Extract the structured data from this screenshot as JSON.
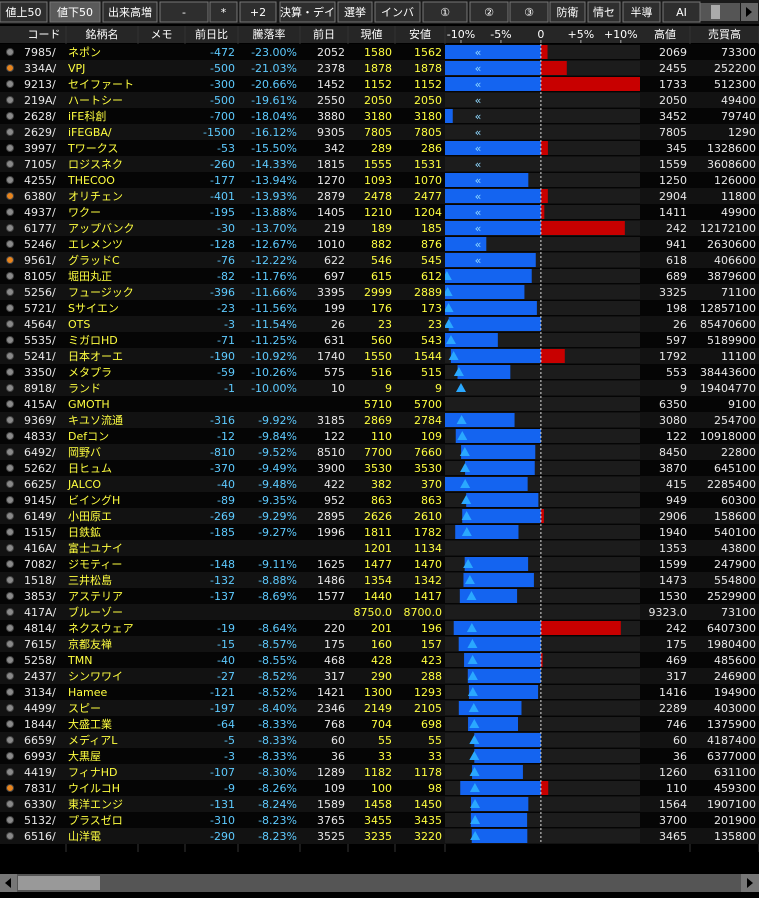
{
  "toolbar": [
    "値上50",
    "値下50",
    "出来高増",
    "-",
    "*",
    "+2",
    "決算・デイ",
    "選挙",
    "インバ",
    "①",
    "②",
    "③",
    "防衛",
    "情セ",
    "半導",
    "AI"
  ],
  "active_tab": 1,
  "table": {
    "headers": [
      "コード",
      "銘柄名",
      "メモ",
      "前日比",
      "騰落率",
      "前日",
      "現値",
      "安値",
      "高値",
      "売買高"
    ],
    "rows": [
      [
        "7985/",
        "ネポン",
        "-472",
        "-23.00%",
        "2052",
        "1580",
        "1562",
        "2069",
        "73300"
      ],
      [
        "334A/",
        "VPJ",
        "-500",
        "-21.03%",
        "2378",
        "1878",
        "1878",
        "2455",
        "252200"
      ],
      [
        "9213/",
        "セイファート",
        "-300",
        "-20.66%",
        "1452",
        "1152",
        "1152",
        "1733",
        "512300"
      ],
      [
        "219A/",
        "ハートシー",
        "-500",
        "-19.61%",
        "2550",
        "2050",
        "2050",
        "2050",
        "49400"
      ],
      [
        "2628/",
        "iFE科創",
        "-700",
        "-18.04%",
        "3880",
        "3180",
        "3180",
        "3452",
        "79740"
      ],
      [
        "2629/",
        "iFEGBA/",
        "-1500",
        "-16.12%",
        "9305",
        "7805",
        "7805",
        "7805",
        "1290"
      ],
      [
        "3997/",
        "Tワークス",
        "-53",
        "-15.50%",
        "342",
        "289",
        "286",
        "345",
        "1328600"
      ],
      [
        "7105/",
        "ロジスネク",
        "-260",
        "-14.33%",
        "1815",
        "1555",
        "1531",
        "1559",
        "3608600"
      ],
      [
        "4255/",
        "THECOO",
        "-177",
        "-13.94%",
        "1270",
        "1093",
        "1070",
        "1250",
        "126000"
      ],
      [
        "6380/",
        "オリチェン",
        "-401",
        "-13.93%",
        "2879",
        "2478",
        "2477",
        "2904",
        "11800"
      ],
      [
        "4937/",
        "ワクー",
        "-195",
        "-13.88%",
        "1405",
        "1210",
        "1204",
        "1411",
        "49900"
      ],
      [
        "6177/",
        "アップバンク",
        "-30",
        "-13.70%",
        "219",
        "189",
        "185",
        "242",
        "12172100"
      ],
      [
        "5246/",
        "エレメンツ",
        "-128",
        "-12.67%",
        "1010",
        "882",
        "876",
        "941",
        "2630600"
      ],
      [
        "9561/",
        "グラッドC",
        "-76",
        "-12.22%",
        "622",
        "546",
        "545",
        "618",
        "406600"
      ],
      [
        "8105/",
        "堀田丸正",
        "-82",
        "-11.76%",
        "697",
        "615",
        "612",
        "689",
        "3879600"
      ],
      [
        "5256/",
        "フュージック",
        "-396",
        "-11.66%",
        "3395",
        "2999",
        "2889",
        "3325",
        "71100"
      ],
      [
        "5721/",
        "Sサイエン",
        "-23",
        "-11.56%",
        "199",
        "176",
        "173",
        "198",
        "12857100"
      ],
      [
        "4564/",
        "OTS",
        "-3",
        "-11.54%",
        "26",
        "23",
        "23",
        "26",
        "85470600"
      ],
      [
        "5535/",
        "ミガロHD",
        "-71",
        "-11.25%",
        "631",
        "560",
        "543",
        "597",
        "5189900"
      ],
      [
        "5241/",
        "日本オーエ",
        "-190",
        "-10.92%",
        "1740",
        "1550",
        "1544",
        "1792",
        "11100"
      ],
      [
        "3350/",
        "メタプラ",
        "-59",
        "-10.26%",
        "575",
        "516",
        "515",
        "553",
        "38443600"
      ],
      [
        "8918/",
        "ランド",
        "-1",
        "-10.00%",
        "10",
        "9",
        "9",
        "9",
        "19404770"
      ],
      [
        "415A/",
        "GMOTH",
        null,
        null,
        null,
        "5710",
        "5700",
        "6350",
        "9100"
      ],
      [
        "9369/",
        "キユソ流通",
        "-316",
        "-9.92%",
        "3185",
        "2869",
        "2784",
        "3080",
        "254700"
      ],
      [
        "4833/",
        "Defコン",
        "-12",
        "-9.84%",
        "122",
        "110",
        "109",
        "122",
        "10918000"
      ],
      [
        "6492/",
        "岡野バ",
        "-810",
        "-9.52%",
        "8510",
        "7700",
        "7660",
        "8450",
        "22800"
      ],
      [
        "5262/",
        "日ヒュム",
        "-370",
        "-9.49%",
        "3900",
        "3530",
        "3530",
        "3870",
        "645100"
      ],
      [
        "6625/",
        "JALCO",
        "-40",
        "-9.48%",
        "422",
        "382",
        "370",
        "415",
        "2285400"
      ],
      [
        "9145/",
        "ビイングH",
        "-89",
        "-9.35%",
        "952",
        "863",
        "863",
        "949",
        "60300"
      ],
      [
        "6149/",
        "小田原エ",
        "-269",
        "-9.29%",
        "2895",
        "2626",
        "2610",
        "2906",
        "158600"
      ],
      [
        "1515/",
        "日鉄鉱",
        "-185",
        "-9.27%",
        "1996",
        "1811",
        "1782",
        "1940",
        "540100"
      ],
      [
        "416A/",
        "富士ユナイ",
        null,
        null,
        null,
        "1201",
        "1134",
        "1353",
        "43800"
      ],
      [
        "7082/",
        "ジモティー",
        "-148",
        "-9.11%",
        "1625",
        "1477",
        "1470",
        "1599",
        "247900"
      ],
      [
        "1518/",
        "三井松島",
        "-132",
        "-8.88%",
        "1486",
        "1354",
        "1342",
        "1473",
        "554800"
      ],
      [
        "3853/",
        "アステリア",
        "-137",
        "-8.69%",
        "1577",
        "1440",
        "1417",
        "1530",
        "2529900"
      ],
      [
        "417A/",
        "ブルーゾー",
        null,
        null,
        null,
        "8750.0",
        "8700.0",
        "9323.0",
        "73100"
      ],
      [
        "4814/",
        "ネクスウェア",
        "-19",
        "-8.64%",
        "220",
        "201",
        "196",
        "242",
        "6407300"
      ],
      [
        "7615/",
        "京都友禅",
        "-15",
        "-8.57%",
        "175",
        "160",
        "157",
        "175",
        "1980400"
      ],
      [
        "5258/",
        "TMN",
        "-40",
        "-8.55%",
        "468",
        "428",
        "423",
        "469",
        "485600"
      ],
      [
        "2437/",
        "シンワワイ",
        "-27",
        "-8.52%",
        "317",
        "290",
        "288",
        "317",
        "246900"
      ],
      [
        "3134/",
        "Hamee",
        "-121",
        "-8.52%",
        "1421",
        "1300",
        "1293",
        "1416",
        "194900"
      ],
      [
        "4499/",
        "スピー",
        "-197",
        "-8.40%",
        "2346",
        "2149",
        "2105",
        "2289",
        "403000"
      ],
      [
        "1844/",
        "大盛工業",
        "-64",
        "-8.33%",
        "768",
        "704",
        "698",
        "746",
        "1375900"
      ],
      [
        "6659/",
        "メディアL",
        "-5",
        "-8.33%",
        "60",
        "55",
        "55",
        "60",
        "4187400"
      ],
      [
        "6993/",
        "大黒屋",
        "-3",
        "-8.33%",
        "36",
        "33",
        "33",
        "36",
        "6377000"
      ],
      [
        "4419/",
        "フィナHD",
        "-107",
        "-8.30%",
        "1289",
        "1182",
        "1178",
        "1260",
        "631100"
      ],
      [
        "7831/",
        "ウイルコH",
        "-9",
        "-8.26%",
        "109",
        "100",
        "98",
        "110",
        "459300"
      ],
      [
        "6330/",
        "東洋エンジ",
        "-131",
        "-8.24%",
        "1589",
        "1458",
        "1450",
        "1564",
        "1907100"
      ],
      [
        "5132/",
        "プラスゼロ",
        "-310",
        "-8.23%",
        "3765",
        "3455",
        "3435",
        "3700",
        "201900"
      ],
      [
        "6516/",
        "山洋電",
        "-290",
        "-8.23%",
        "3525",
        "3235",
        "3220",
        "3465",
        "135800"
      ]
    ]
  },
  "dot_colors": [
    "#8a8a8a",
    "#e8851e",
    "#8a8a8a",
    "#8a8a8a",
    "#8a8a8a",
    "#8a8a8a",
    "#8a8a8a",
    "#8a8a8a",
    "#8a8a8a",
    "#e8851e",
    "#8a8a8a",
    "#8a8a8a",
    "#8a8a8a",
    "#e8851e",
    "#8a8a8a",
    "#8a8a8a",
    "#8a8a8a",
    "#8a8a8a",
    "#8a8a8a",
    "#8a8a8a",
    "#8a8a8a",
    "#8a8a8a",
    "#8a8a8a",
    "#8a8a8a",
    "#8a8a8a",
    "#8a8a8a",
    "#8a8a8a",
    "#8a8a8a",
    "#8a8a8a",
    "#8a8a8a",
    "#8a8a8a",
    "#8a8a8a",
    "#8a8a8a",
    "#8a8a8a",
    "#8a8a8a",
    "#8a8a8a",
    "#8a8a8a",
    "#8a8a8a",
    "#8a8a8a",
    "#8a8a8a",
    "#8a8a8a",
    "#8a8a8a",
    "#8a8a8a",
    "#8a8a8a",
    "#8a8a8a",
    "#8a8a8a",
    "#e8851e",
    "#8a8a8a",
    "#8a8a8a",
    "#8a8a8a"
  ],
  "range_bar": {
    "xlim": [
      -12,
      12.4
    ],
    "ticks": [
      {
        "value": -10,
        "label": "-10%"
      },
      {
        "value": -5,
        "label": "-5%"
      },
      0,
      {
        "value": 5,
        "label": "+5%"
      },
      {
        "value": 10,
        "label": "+10%"
      }
    ],
    "offscale_symbol": "«",
    "down_color": "#1464f0",
    "up_color": "#c80000",
    "marker_color": "#2aa8ff"
  }
}
